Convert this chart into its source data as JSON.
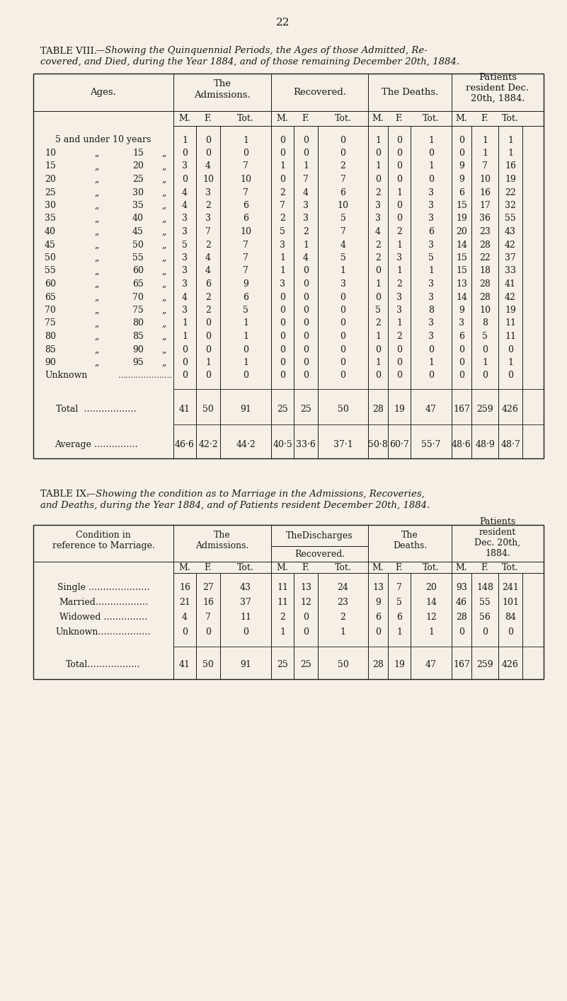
{
  "page_number": "22",
  "bg_color": "#f5efe6",
  "text_color": "#1a1a1a",
  "table8_title_left": "TABLE VIII.",
  "table8_title_rest": "—Showing the Quinquennial Periods, the Ages of those Admitted, Re-",
  "table8_title_line2": "covered, and Died, during the Year 1884, and of those remaining December 20th, 1884.",
  "table9_title_left": "TABLE IX.",
  "table9_title_rest": "—Showing the condition as to Marriage in the Admissions, Recoveries,",
  "table9_title_line2": "and Deaths, during the Year 1884, and of Patients resident December 20th, 1884.",
  "table8_age_rows": [
    {
      "label_left": "5 and under 10 years",
      "label_format": "phrase",
      "vals": [
        "1",
        "0",
        "1",
        "0",
        "0",
        "0",
        "1",
        "0",
        "1",
        "0",
        "1",
        "1"
      ]
    },
    {
      "label_left": "10",
      "label_mid": "„",
      "label_right": "15",
      "label_format": "range",
      "vals": [
        "0",
        "0",
        "0",
        "0",
        "0",
        "0",
        "0",
        "0",
        "0",
        "0",
        "1",
        "1"
      ]
    },
    {
      "label_left": "15",
      "label_mid": "„",
      "label_right": "20",
      "label_format": "range",
      "vals": [
        "3",
        "4",
        "7",
        "1",
        "1",
        "2",
        "1",
        "0",
        "1",
        "9",
        "7",
        "16"
      ]
    },
    {
      "label_left": "20",
      "label_mid": "„",
      "label_right": "25",
      "label_format": "range",
      "vals": [
        "0",
        "10",
        "10",
        "0",
        "7",
        "7",
        "0",
        "0",
        "0",
        "9",
        "10",
        "19"
      ]
    },
    {
      "label_left": "25",
      "label_mid": "„",
      "label_right": "30",
      "label_format": "range",
      "vals": [
        "4",
        "3",
        "7",
        "2",
        "4",
        "6",
        "2",
        "1",
        "3",
        "6",
        "16",
        "22"
      ]
    },
    {
      "label_left": "30",
      "label_mid": "„",
      "label_right": "35",
      "label_format": "range",
      "vals": [
        "4",
        "2",
        "6",
        "7",
        "3",
        "10",
        "3",
        "0",
        "3",
        "15",
        "17",
        "32"
      ]
    },
    {
      "label_left": "35",
      "label_mid": "„",
      "label_right": "40",
      "label_format": "range",
      "vals": [
        "3",
        "3",
        "6",
        "2",
        "3",
        "5",
        "3",
        "0",
        "3",
        "19",
        "36",
        "55"
      ]
    },
    {
      "label_left": "40",
      "label_mid": "„",
      "label_right": "45",
      "label_format": "range",
      "vals": [
        "3",
        "7",
        "10",
        "5",
        "2",
        "7",
        "4",
        "2",
        "6",
        "20",
        "23",
        "43"
      ]
    },
    {
      "label_left": "45",
      "label_mid": "„",
      "label_right": "50",
      "label_format": "range",
      "vals": [
        "5",
        "2",
        "7",
        "3",
        "1",
        "4",
        "2",
        "1",
        "3",
        "14",
        "28",
        "42"
      ]
    },
    {
      "label_left": "50",
      "label_mid": "„",
      "label_right": "55",
      "label_format": "range",
      "vals": [
        "3",
        "4",
        "7",
        "1",
        "4",
        "5",
        "2",
        "3",
        "5",
        "15",
        "22",
        "37"
      ]
    },
    {
      "label_left": "55",
      "label_mid": "„",
      "label_right": "60",
      "label_format": "range",
      "vals": [
        "3",
        "4",
        "7",
        "1",
        "0",
        "1",
        "0",
        "1",
        "1",
        "15",
        "18",
        "33"
      ]
    },
    {
      "label_left": "60",
      "label_mid": "„",
      "label_right": "65",
      "label_format": "range",
      "vals": [
        "3",
        "6",
        "9",
        "3",
        "0",
        "3",
        "1",
        "2",
        "3",
        "13",
        "28",
        "41"
      ]
    },
    {
      "label_left": "65",
      "label_mid": "„",
      "label_right": "70",
      "label_format": "range",
      "vals": [
        "4",
        "2",
        "6",
        "0",
        "0",
        "0",
        "0",
        "3",
        "3",
        "14",
        "28",
        "42"
      ]
    },
    {
      "label_left": "70",
      "label_mid": "„",
      "label_right": "75",
      "label_format": "range",
      "vals": [
        "3",
        "2",
        "5",
        "0",
        "0",
        "0",
        "5",
        "3",
        "8",
        "9",
        "10",
        "19"
      ]
    },
    {
      "label_left": "75",
      "label_mid": "„",
      "label_right": "80",
      "label_format": "range",
      "vals": [
        "1",
        "0",
        "1",
        "0",
        "0",
        "0",
        "2",
        "1",
        "3",
        "3",
        "8",
        "11"
      ]
    },
    {
      "label_left": "80",
      "label_mid": "„",
      "label_right": "85",
      "label_format": "range",
      "vals": [
        "1",
        "0",
        "1",
        "0",
        "0",
        "0",
        "1",
        "2",
        "3",
        "6",
        "5",
        "11"
      ]
    },
    {
      "label_left": "85",
      "label_mid": "„",
      "label_right": "90",
      "label_format": "range",
      "vals": [
        "0",
        "0",
        "0",
        "0",
        "0",
        "0",
        "0",
        "0",
        "0",
        "0",
        "0",
        "0"
      ]
    },
    {
      "label_left": "90",
      "label_mid": "„",
      "label_right": "95",
      "label_format": "range",
      "vals": [
        "0",
        "1",
        "1",
        "0",
        "0",
        "0",
        "1",
        "0",
        "1",
        "0",
        "1",
        "1"
      ]
    },
    {
      "label_left": "Unknown",
      "label_mid": "…………………",
      "label_format": "unknown",
      "vals": [
        "0",
        "0",
        "0",
        "0",
        "0",
        "0",
        "0",
        "0",
        "0",
        "0",
        "0",
        "0"
      ]
    }
  ],
  "table8_total_vals": [
    "41",
    "50",
    "91",
    "25",
    "25",
    "50",
    "28",
    "19",
    "47",
    "167",
    "259",
    "426"
  ],
  "table8_avg_vals": [
    "46·6",
    "42·2",
    "44·2",
    "40·5",
    "33·6",
    "37·1",
    "50·8",
    "60·7",
    "55·7",
    "48·6",
    "48·9",
    "48·7"
  ],
  "table9_rows": [
    {
      "label": "Single …………………",
      "vals": [
        "16",
        "27",
        "43",
        "11",
        "13",
        "24",
        "13",
        "7",
        "20",
        "93",
        "148",
        "241"
      ]
    },
    {
      "label": "Married………………",
      "vals": [
        "21",
        "16",
        "37",
        "11",
        "12",
        "23",
        "9",
        "5",
        "14",
        "46",
        "55",
        "101"
      ]
    },
    {
      "label": "Widowed ……………",
      "vals": [
        "4",
        "7",
        "11",
        "2",
        "0",
        "2",
        "6",
        "6",
        "12",
        "28",
        "56",
        "84"
      ]
    },
    {
      "label": "Unknown………………",
      "vals": [
        "0",
        "0",
        "0",
        "1",
        "0",
        "1",
        "0",
        "1",
        "1",
        "0",
        "0",
        "0"
      ]
    }
  ],
  "table9_total_vals": [
    "41",
    "50",
    "91",
    "25",
    "25",
    "50",
    "28",
    "19",
    "47",
    "167",
    "259",
    "426"
  ]
}
